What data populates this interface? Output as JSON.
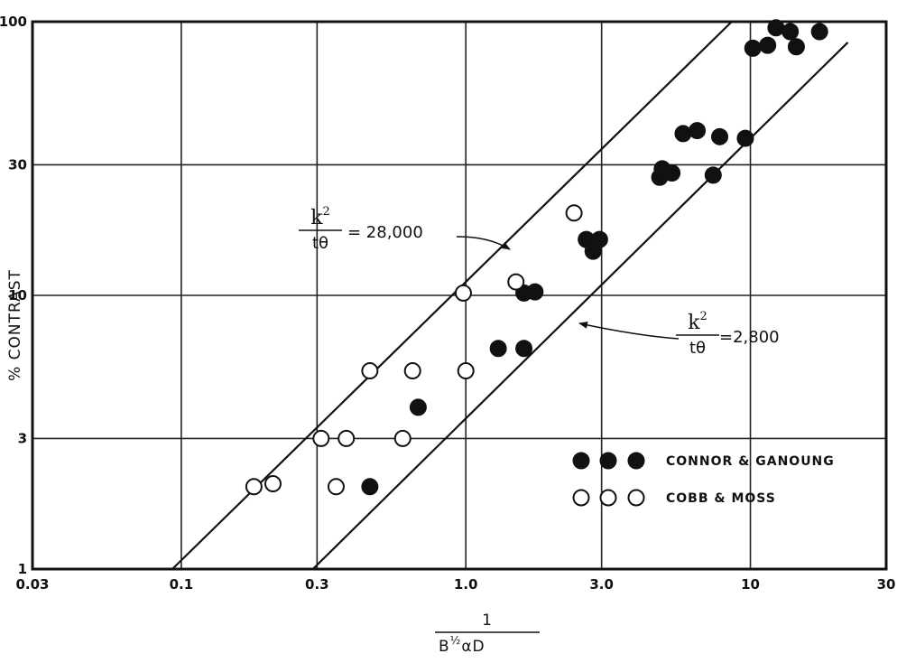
{
  "chart_data": {
    "type": "scatter",
    "x_scale": "log",
    "y_scale": "log",
    "xlim": [
      0.03,
      30
    ],
    "ylim": [
      1,
      100
    ],
    "grid": true,
    "x_ticks": [
      {
        "value": 0.03,
        "label": "0.03"
      },
      {
        "value": 0.1,
        "label": "0.1"
      },
      {
        "value": 0.3,
        "label": "0.3"
      },
      {
        "value": 1.0,
        "label": "1.0"
      },
      {
        "value": 3.0,
        "label": "3.0"
      },
      {
        "value": 10,
        "label": "10"
      },
      {
        "value": 30,
        "label": "30"
      }
    ],
    "y_ticks": [
      {
        "value": 1,
        "label": "1"
      },
      {
        "value": 3,
        "label": "3"
      },
      {
        "value": 10,
        "label": "10"
      },
      {
        "value": 30,
        "label": "30"
      },
      {
        "value": 100,
        "label": "100"
      }
    ],
    "ylabel": "% CONTRAST",
    "xlabel": {
      "numerator": "1",
      "denominator": "B",
      "exponent": "½",
      "tail": "αD"
    },
    "legend_position": "bottom-right",
    "series": [
      {
        "name": "CONNOR & GANOUNG",
        "marker": "filled-circle",
        "color": "#111111",
        "points": [
          [
            0.46,
            2.0
          ],
          [
            0.68,
            3.9
          ],
          [
            1.3,
            6.4
          ],
          [
            1.6,
            6.4
          ],
          [
            1.6,
            10.2
          ],
          [
            1.75,
            10.3
          ],
          [
            2.65,
            16.0
          ],
          [
            2.8,
            14.5
          ],
          [
            2.95,
            16.0
          ],
          [
            4.8,
            27
          ],
          [
            4.9,
            29
          ],
          [
            5.3,
            28
          ],
          [
            5.8,
            39
          ],
          [
            6.5,
            40
          ],
          [
            7.8,
            38
          ],
          [
            9.6,
            37.5
          ],
          [
            7.4,
            27.5
          ],
          [
            10.2,
            80
          ],
          [
            11.5,
            82
          ],
          [
            12.3,
            95
          ],
          [
            13.8,
            92
          ],
          [
            14.5,
            81
          ],
          [
            17.5,
            92
          ]
        ]
      },
      {
        "name": "COBB & MOSS",
        "marker": "open-circle",
        "color": "#111111",
        "points": [
          [
            0.18,
            2.0
          ],
          [
            0.21,
            2.05
          ],
          [
            0.31,
            3.0
          ],
          [
            0.35,
            2.0
          ],
          [
            0.38,
            3.0
          ],
          [
            0.46,
            5.3
          ],
          [
            0.6,
            3.0
          ],
          [
            0.65,
            5.3
          ],
          [
            0.98,
            10.2
          ],
          [
            1.0,
            5.3
          ],
          [
            1.5,
            11.2
          ],
          [
            2.4,
            20
          ]
        ]
      }
    ],
    "reference_lines": [
      {
        "name": "k²/tθ = 28,000",
        "points": [
          [
            0.093,
            1
          ],
          [
            8.6,
            100
          ]
        ],
        "label": {
          "numerator_base": "k",
          "exponent": "2",
          "denominator": "tθ",
          "value": "= 28,000"
        }
      },
      {
        "name": "k²/tθ = 2,800",
        "points": [
          [
            0.29,
            1
          ],
          [
            22,
            84
          ]
        ],
        "label": {
          "numerator_base": "k",
          "exponent": "2",
          "denominator": "tθ",
          "value": "=2,800"
        }
      }
    ],
    "legend": [
      {
        "series": "CONNOR & GANOUNG",
        "label": "CONNOR & GANOUNG",
        "marker": "filled-circle"
      },
      {
        "series": "COBB & MOSS",
        "label": "COBB & MOSS",
        "marker": "open-circle"
      }
    ]
  }
}
